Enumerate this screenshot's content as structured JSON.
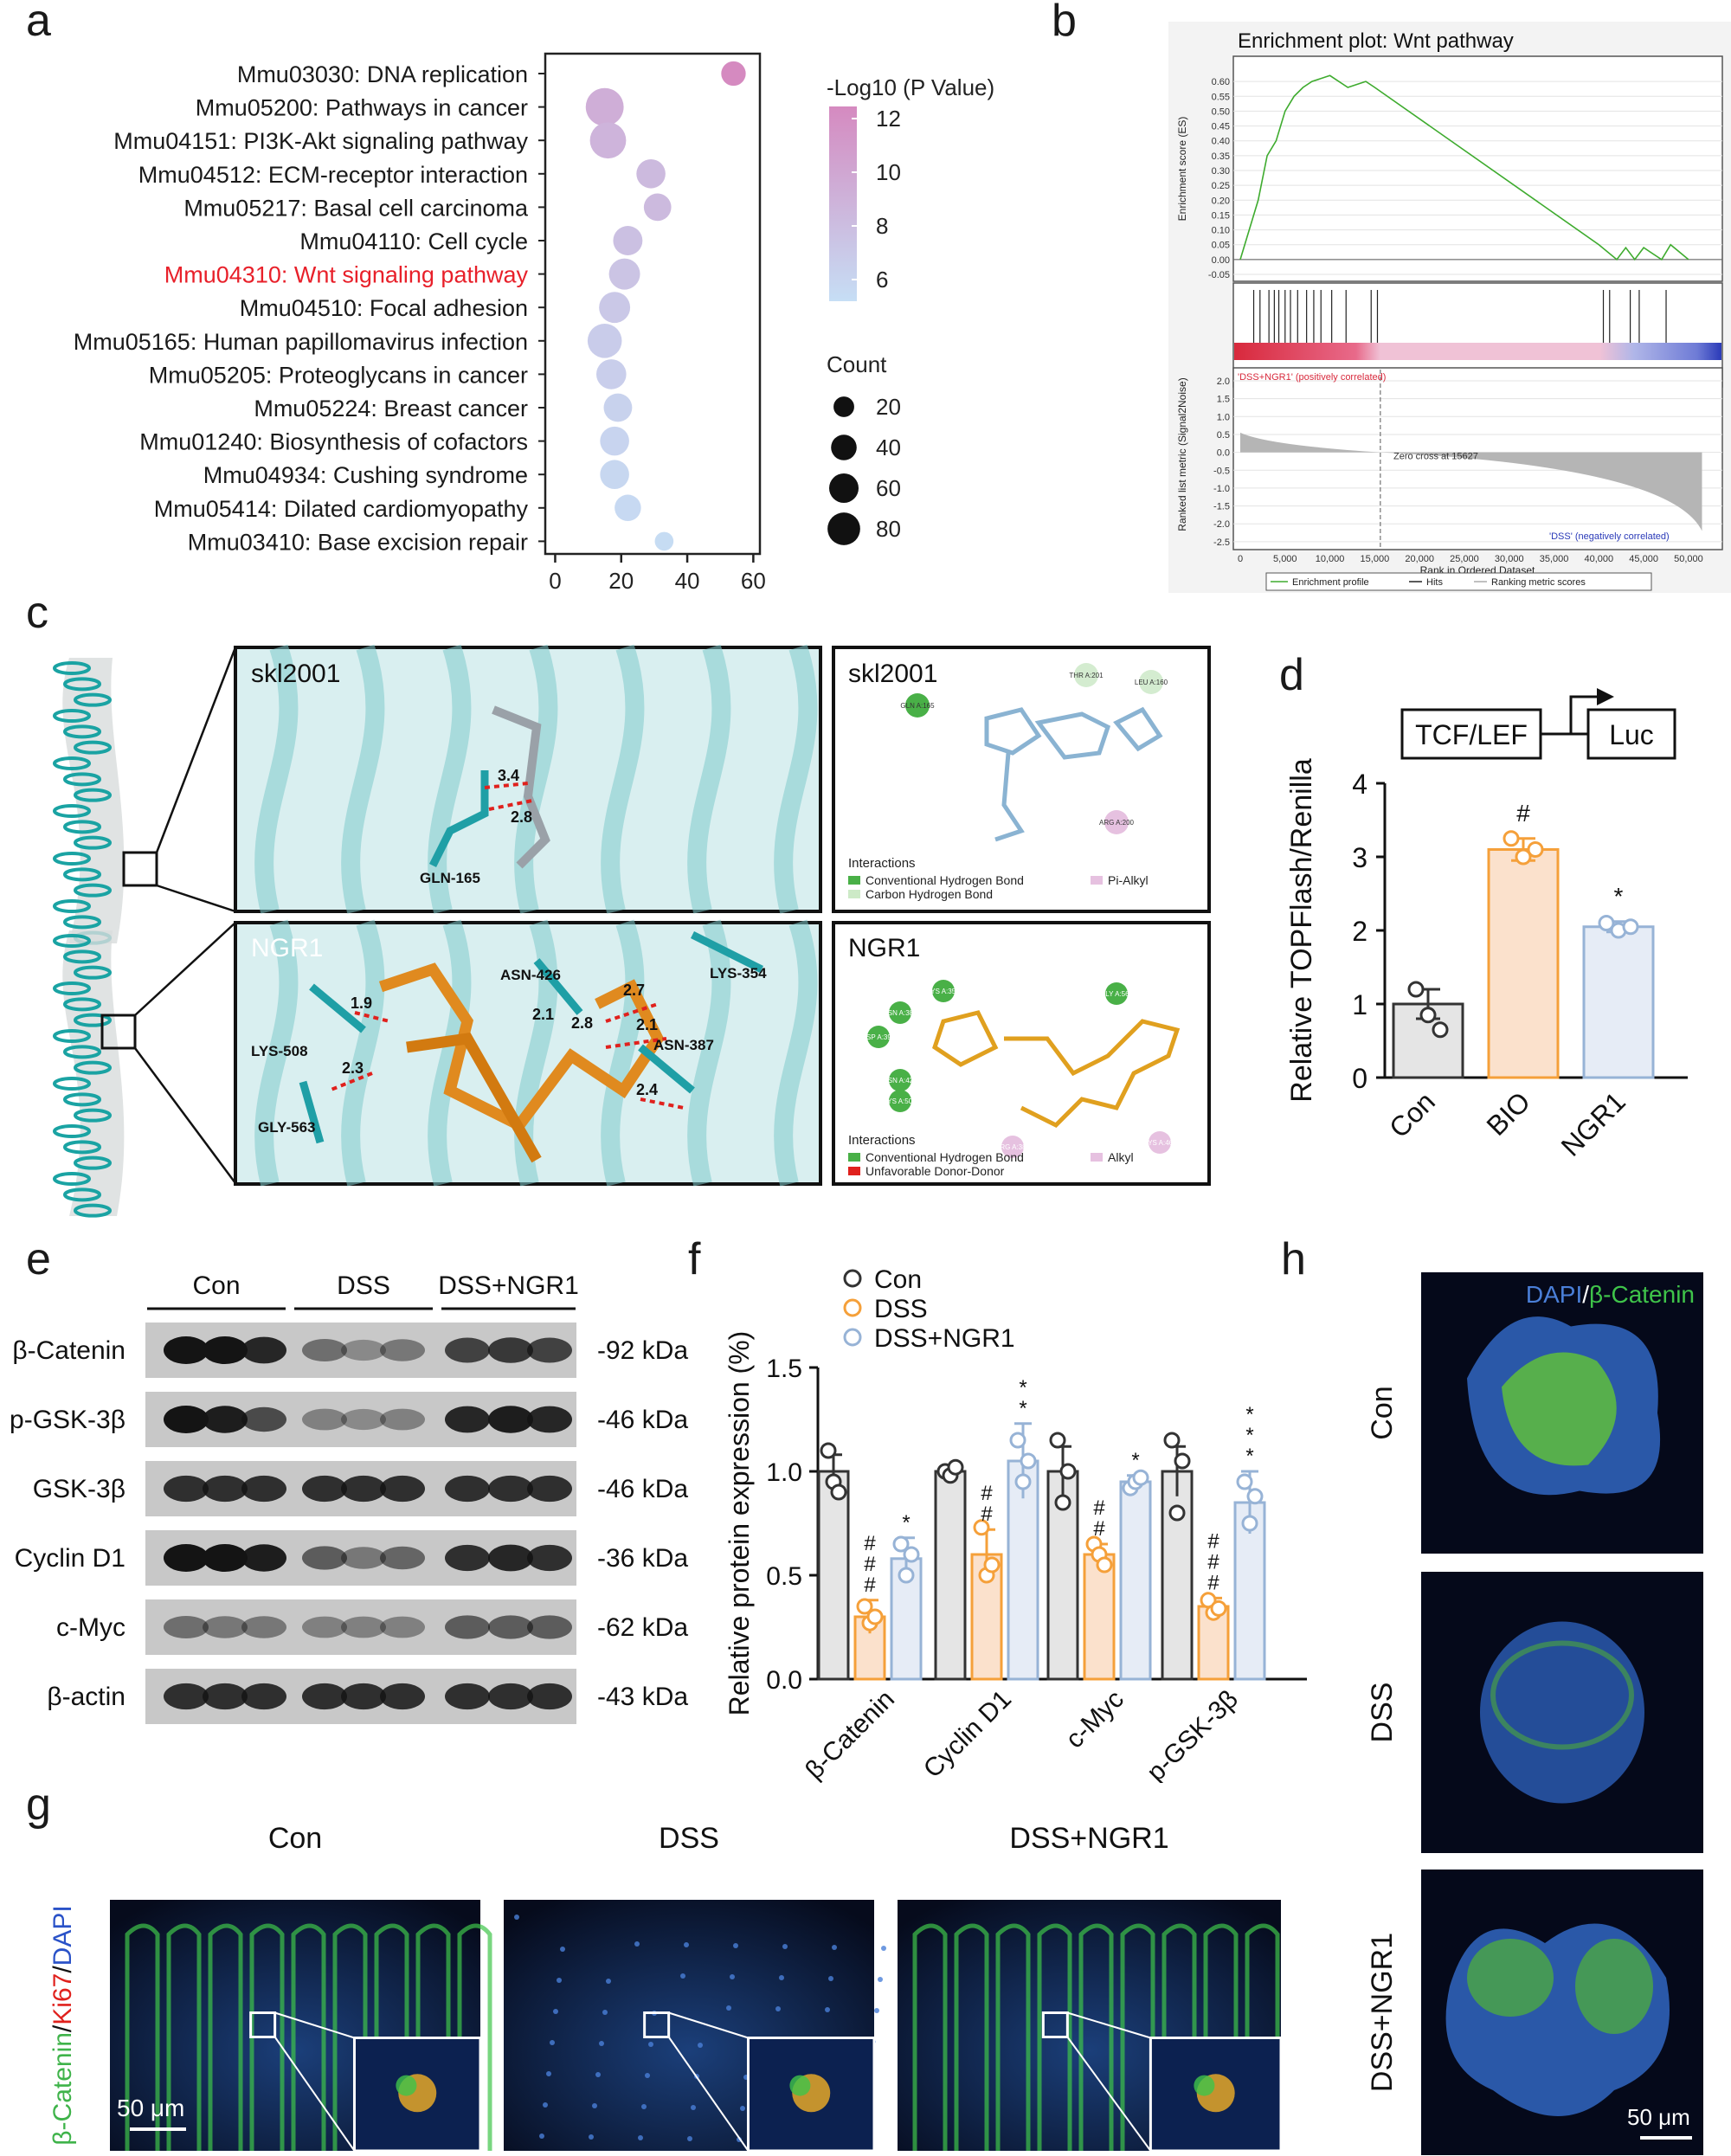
{
  "panels": {
    "a": "a",
    "b": "b",
    "c": "c",
    "d": "d",
    "e": "e",
    "f": "f",
    "g": "g",
    "h": "h"
  },
  "panel_a": {
    "chart_data": {
      "type": "scatter",
      "categories": [
        "Mmu03030: DNA replication",
        "Mmu05200: Pathways in cancer",
        "Mmu04151: PI3K-Akt signaling pathway",
        "Mmu04512: ECM-receptor interaction",
        "Mmu05217: Basal cell carcinoma",
        "Mmu04110: Cell cycle",
        "Mmu04310: Wnt signaling pathway",
        "Mmu04510: Focal adhesion",
        "Mmu05165: Human papillomavirus infection",
        "Mmu05205: Proteoglycans in cancer",
        "Mmu05224: Breast cancer",
        "Mmu01240: Biosynthesis of cofactors",
        "Mmu04934: Cushing syndrome",
        "Mmu05414: Dilated cardiomyopathy",
        "Mmu03410: Base excision repair"
      ],
      "x": [
        54,
        15,
        16,
        29,
        31,
        22,
        21,
        18,
        15,
        17,
        19,
        18,
        18,
        22,
        33
      ],
      "count": [
        20,
        68,
        60,
        33,
        28,
        34,
        40,
        40,
        52,
        36,
        31,
        33,
        33,
        25,
        8
      ],
      "neglog10p": [
        12,
        9,
        8.5,
        8,
        8,
        7.5,
        7.2,
        6.8,
        6.5,
        6.3,
        6,
        5.8,
        5.6,
        5.4,
        5.2
      ],
      "highlight_index": 6,
      "xticks": [
        "0",
        "20",
        "40",
        "60"
      ],
      "xlim": [
        -3,
        62
      ],
      "color_title": "-Log10 (P Value)",
      "color_ticks": [
        "12",
        "10",
        "8",
        "6"
      ],
      "size_title": "Count",
      "size_ticks": [
        "20",
        "40",
        "60",
        "80"
      ],
      "colors": {
        "high": "#d58ac0",
        "low": "#c6def5",
        "highlight": "#e8202a"
      }
    }
  },
  "panel_b": {
    "title": "Enrichment plot: Wnt pathway",
    "es_label": "Enrichment score (ES)",
    "es_ticks": [
      "0.60",
      "0.55",
      "0.50",
      "0.45",
      "0.40",
      "0.35",
      "0.30",
      "0.25",
      "0.20",
      "0.15",
      "0.10",
      "0.05",
      "0.00",
      "-0.05"
    ],
    "metric_label": "Ranked list metric (Signal2Noise)",
    "metric_ticks": [
      "2.0",
      "1.5",
      "1.0",
      "0.5",
      "0.0",
      "-0.5",
      "-1.0",
      "-1.5",
      "-2.0",
      "-2.5"
    ],
    "pos_label": "'DSS+NGR1' (positively correlated)",
    "neg_label": "'DSS' (negatively correlated)",
    "zero_cross": "Zero cross at 15627",
    "xlabel": "Rank in Ordered Dataset",
    "xticks": [
      "0",
      "5,000",
      "10,000",
      "15,000",
      "20,000",
      "25,000",
      "30,000",
      "35,000",
      "40,000",
      "45,000",
      "50,000"
    ],
    "legend": [
      "Enrichment profile",
      "Hits",
      "Ranking metric scores"
    ]
  },
  "panel_c": {
    "top_label": "skl2001",
    "bottom_label": "NGR1",
    "top_residues": [
      "GLN-165"
    ],
    "top_distances": [
      "3.4",
      "2.8"
    ],
    "bottom_residues": [
      "ASN-426",
      "LYS-354",
      "LYS-508",
      "GLY-563",
      "ASN-387"
    ],
    "bottom_distances": [
      "1.9",
      "2.3",
      "2.1",
      "2.8",
      "2.7",
      "2.1",
      "2.4"
    ],
    "interactions_title": "Interactions",
    "top_interactions": [
      "Conventional Hydrogen Bond",
      "Carbon Hydrogen Bond",
      "Pi-Alkyl"
    ],
    "bottom_interactions": [
      "Conventional Hydrogen Bond",
      "Unfavorable Donor-Donor",
      "Alkyl"
    ],
    "top_2d_labels": [
      "GLN A:165",
      "THR A:201",
      "LEU A:160",
      "ARG A:200"
    ],
    "bottom_2d_labels": [
      "GLY A:563",
      "ASN A:387",
      "ASP A:390",
      "ASN A:426",
      "LYS A:508",
      "ARG A:386",
      "CYS A:464",
      "LYS A:354"
    ]
  },
  "panel_d": {
    "construct": [
      "TCF/LEF",
      "Luc"
    ],
    "ylabel": "Relative TOPFlash/Renilla",
    "chart_data": {
      "type": "bar",
      "categories": [
        "Con",
        "BIO",
        "NGR1"
      ],
      "values": [
        1.0,
        3.1,
        2.05
      ],
      "errors": [
        0.2,
        0.15,
        0.07
      ],
      "points": [
        [
          1.2,
          0.85,
          0.65
        ],
        [
          3.25,
          3.0,
          3.1
        ],
        [
          2.1,
          2.0,
          2.05
        ]
      ],
      "ylim": [
        0,
        4
      ],
      "yticks": [
        "0",
        "1",
        "2",
        "3",
        "4"
      ],
      "marks": [
        "",
        "#",
        "*"
      ],
      "colors": {
        "fills": [
          "#e5e5e5",
          "#fbe1cc",
          "#e6ecf6"
        ],
        "strokes": [
          "#333333",
          "#f5a03a",
          "#97b3d6"
        ]
      }
    }
  },
  "panel_e": {
    "groups": [
      "Con",
      "DSS",
      "DSS+NGR1"
    ],
    "rows": [
      {
        "name": "β-Catenin",
        "kda": "-92 kDa"
      },
      {
        "name": "p-GSK-3β",
        "kda": "-46 kDa"
      },
      {
        "name": "GSK-3β",
        "kda": "-46 kDa"
      },
      {
        "name": "Cyclin D1",
        "kda": "-36 kDa"
      },
      {
        "name": "c-Myc",
        "kda": "-62 kDa"
      },
      {
        "name": "β-actin",
        "kda": "-43 kDa"
      }
    ]
  },
  "panel_f": {
    "ylabel": "Relative protein expression (%)",
    "legend": [
      "Con",
      "DSS",
      "DSS+NGR1"
    ],
    "chart_data": {
      "type": "bar",
      "categories": [
        "β-Catenin",
        "Cyclin D1",
        "c-Myc",
        "p-GSK-3β"
      ],
      "series": [
        {
          "name": "Con",
          "values": [
            1.0,
            1.0,
            1.0,
            1.0
          ],
          "errors": [
            0.08,
            0.03,
            0.12,
            0.12
          ],
          "points": [
            [
              1.1,
              0.95,
              0.9
            ],
            [
              1.0,
              0.98,
              1.02
            ],
            [
              1.15,
              0.85,
              1.0
            ],
            [
              1.15,
              0.8,
              1.05
            ]
          ]
        },
        {
          "name": "DSS",
          "values": [
            0.3,
            0.6,
            0.6,
            0.35
          ],
          "errors": [
            0.08,
            0.12,
            0.05,
            0.04
          ],
          "points": [
            [
              0.35,
              0.27,
              0.3
            ],
            [
              0.73,
              0.5,
              0.55
            ],
            [
              0.65,
              0.6,
              0.55
            ],
            [
              0.38,
              0.32,
              0.34
            ]
          ]
        },
        {
          "name": "DSS+NGR1",
          "values": [
            0.58,
            1.05,
            0.95,
            0.85
          ],
          "errors": [
            0.1,
            0.18,
            0.03,
            0.15
          ],
          "points": [
            [
              0.65,
              0.5,
              0.6
            ],
            [
              1.15,
              0.95,
              1.05
            ],
            [
              0.92,
              0.95,
              0.97
            ],
            [
              0.95,
              0.75,
              0.88
            ]
          ]
        }
      ],
      "ylim": [
        0,
        1.5
      ],
      "yticks": [
        "0.0",
        "0.5",
        "1.0",
        "1.5"
      ],
      "dss_marks": [
        "#\n#\n#",
        "#\n#",
        "#\n#",
        "#\n#\n#"
      ],
      "ngr_marks": [
        "*",
        "*\n*",
        "*",
        "*\n*\n*"
      ],
      "colors": {
        "fills": [
          "#e5e5e5",
          "#fbe1cc",
          "#e6ecf6"
        ],
        "strokes": [
          "#333333",
          "#f5a03a",
          "#97b3d6"
        ]
      }
    }
  },
  "panel_g": {
    "columns": [
      "Con",
      "DSS",
      "DSS+NGR1"
    ],
    "side_label_parts": [
      "β-Catenin",
      "/",
      "Ki67",
      "/",
      "DAPI"
    ],
    "scale": "50 μm"
  },
  "panel_h": {
    "title_parts": [
      "DAPI",
      "/",
      "β-Catenin"
    ],
    "rows": [
      "Con",
      "DSS",
      "DSS+NGR1"
    ],
    "scale": "50 μm"
  }
}
